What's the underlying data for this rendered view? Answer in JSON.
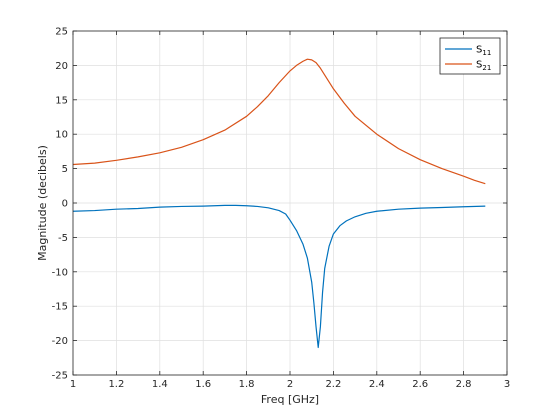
{
  "chart_data": {
    "type": "line",
    "xlabel": "Freq [GHz]",
    "ylabel": "Magnitude (decibels)",
    "xlim": [
      1,
      3
    ],
    "ylim": [
      -25,
      25
    ],
    "x_ticks": [
      1,
      1.2,
      1.4,
      1.6,
      1.8,
      2,
      2.2,
      2.4,
      2.6,
      2.8,
      3
    ],
    "x_tick_labels": [
      "1",
      "1.2",
      "1.4",
      "1.6",
      "1.8",
      "2",
      "2.2",
      "2.4",
      "2.6",
      "2.8",
      "3"
    ],
    "y_ticks": [
      -25,
      -20,
      -15,
      -10,
      -5,
      0,
      5,
      10,
      15,
      20,
      25
    ],
    "y_tick_labels": [
      "-25",
      "-20",
      "-15",
      "-10",
      "-5",
      "0",
      "5",
      "10",
      "15",
      "20",
      "25"
    ],
    "grid": true,
    "legend_position": "top-right",
    "series": [
      {
        "name": "S",
        "name_subscript": "11",
        "color": "#0072BD",
        "x": [
          1.0,
          1.1,
          1.2,
          1.3,
          1.4,
          1.5,
          1.6,
          1.7,
          1.75,
          1.8,
          1.85,
          1.9,
          1.95,
          1.98,
          2.0,
          2.03,
          2.06,
          2.08,
          2.1,
          2.11,
          2.12,
          2.13,
          2.14,
          2.15,
          2.16,
          2.18,
          2.2,
          2.23,
          2.26,
          2.3,
          2.35,
          2.4,
          2.5,
          2.6,
          2.7,
          2.8,
          2.9
        ],
        "y": [
          -1.2,
          -1.1,
          -0.9,
          -0.8,
          -0.6,
          -0.5,
          -0.45,
          -0.35,
          -0.35,
          -0.4,
          -0.5,
          -0.7,
          -1.1,
          -1.6,
          -2.5,
          -4.0,
          -6.0,
          -8.0,
          -11.5,
          -14.5,
          -18.0,
          -21.0,
          -18.0,
          -13.0,
          -9.5,
          -6.3,
          -4.5,
          -3.3,
          -2.6,
          -2.0,
          -1.5,
          -1.2,
          -0.9,
          -0.75,
          -0.65,
          -0.55,
          -0.45
        ]
      },
      {
        "name": "S",
        "name_subscript": "21",
        "color": "#D95319",
        "x": [
          1.0,
          1.1,
          1.2,
          1.3,
          1.4,
          1.5,
          1.6,
          1.7,
          1.8,
          1.85,
          1.9,
          1.95,
          2.0,
          2.03,
          2.06,
          2.08,
          2.1,
          2.12,
          2.14,
          2.16,
          2.2,
          2.25,
          2.3,
          2.4,
          2.5,
          2.6,
          2.7,
          2.8,
          2.85,
          2.9
        ],
        "y": [
          5.6,
          5.8,
          6.2,
          6.7,
          7.3,
          8.1,
          9.2,
          10.6,
          12.6,
          14.0,
          15.6,
          17.5,
          19.2,
          20.0,
          20.6,
          20.9,
          20.8,
          20.4,
          19.6,
          18.6,
          16.6,
          14.5,
          12.6,
          10.0,
          7.9,
          6.3,
          5.0,
          3.9,
          3.3,
          2.8
        ]
      }
    ]
  }
}
